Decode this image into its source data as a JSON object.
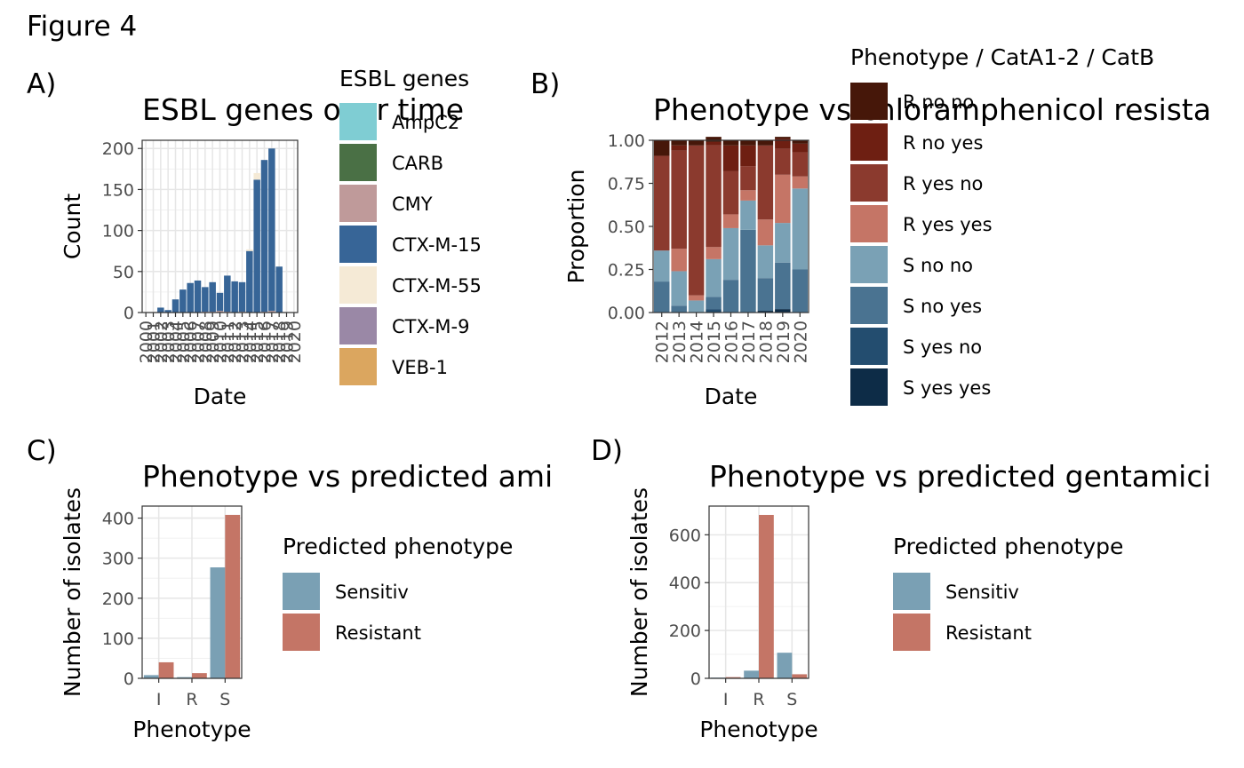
{
  "figure_title": "Figure 4",
  "chart_data": [
    {
      "panel": "A)",
      "type": "bar",
      "stacked": true,
      "title": "ESBL genes over time",
      "xlabel": "Date",
      "ylabel": "Count",
      "ylim": [
        0,
        210
      ],
      "yticks": [
        0,
        50,
        100,
        150,
        200
      ],
      "grid": true,
      "legend_title": "ESBL genes",
      "legend_position": "right",
      "x": [
        2000,
        2001,
        2002,
        2003,
        2004,
        2005,
        2006,
        2007,
        2008,
        2009,
        2010,
        2011,
        2012,
        2013,
        2014,
        2015,
        2016,
        2017,
        2018,
        2019,
        2020
      ],
      "series": [
        {
          "name": "AmpC2",
          "color": "#7fcdd3",
          "values": [
            0,
            0,
            0,
            0,
            0,
            0,
            0,
            0,
            0,
            0,
            0,
            0,
            0,
            0,
            0,
            0,
            0,
            0,
            0,
            0,
            0
          ]
        },
        {
          "name": "CARB",
          "color": "#4a7045",
          "values": [
            0,
            0,
            0,
            0,
            0,
            0,
            0,
            0,
            0,
            0,
            0,
            0,
            0,
            0,
            0,
            0,
            0,
            0,
            0,
            0,
            0
          ]
        },
        {
          "name": "CMY",
          "color": "#bf9a9a",
          "values": [
            0,
            0,
            0,
            0,
            0,
            0,
            0,
            0,
            1,
            1,
            2,
            1,
            0,
            1,
            0,
            0,
            1,
            2,
            0,
            0,
            0
          ]
        },
        {
          "name": "CTX-M-15",
          "color": "#376597",
          "values": [
            0,
            0,
            6,
            3,
            16,
            28,
            36,
            39,
            30,
            36,
            22,
            44,
            38,
            36,
            75,
            162,
            185,
            198,
            56,
            0,
            0
          ]
        },
        {
          "name": "CTX-M-55",
          "color": "#f5ead6",
          "values": [
            0,
            0,
            0,
            0,
            0,
            0,
            0,
            0,
            0,
            0,
            0,
            0,
            0,
            0,
            2,
            8,
            0,
            0,
            0,
            0,
            0
          ]
        },
        {
          "name": "CTX-M-9",
          "color": "#9a88a6",
          "values": [
            0,
            0,
            0,
            0,
            0,
            0,
            0,
            0,
            0,
            0,
            0,
            0,
            0,
            0,
            0,
            0,
            0,
            0,
            0,
            0,
            0
          ]
        },
        {
          "name": "VEB-1",
          "color": "#dba65f",
          "values": [
            0,
            0,
            0,
            0,
            0,
            0,
            0,
            0,
            0,
            0,
            0,
            0,
            0,
            0,
            0,
            0,
            0,
            0,
            0,
            0,
            0
          ]
        }
      ]
    },
    {
      "panel": "B)",
      "type": "bar",
      "stacked": true,
      "title": "Phenotype vs chloramphenicol resista",
      "xlabel": "Date",
      "ylabel": "Proportion",
      "ylim": [
        0,
        1
      ],
      "yticks": [
        "0.00",
        "0.25",
        "0.50",
        "0.75",
        "1.00"
      ],
      "grid": false,
      "legend_title": "Phenotype / CatA1-2 / CatB",
      "legend_position": "right",
      "categories": [
        "2012",
        "2013",
        "2014",
        "2015",
        "2016",
        "2017",
        "2018",
        "2019",
        "2020"
      ],
      "series": [
        {
          "name": "S yes yes",
          "color": "#0d2c47",
          "values": [
            0,
            0,
            0,
            0,
            0,
            0,
            0.01,
            0.02,
            0
          ]
        },
        {
          "name": "S yes no",
          "color": "#234d6f",
          "values": [
            0,
            0,
            0,
            0.02,
            0,
            0,
            0,
            0,
            0
          ]
        },
        {
          "name": "S no yes",
          "color": "#4a7391",
          "values": [
            0.18,
            0.04,
            0,
            0.07,
            0.19,
            0.48,
            0.19,
            0.27,
            0.25
          ]
        },
        {
          "name": "S no no",
          "color": "#7aa1b5",
          "values": [
            0.18,
            0.2,
            0.07,
            0.22,
            0.3,
            0.17,
            0.19,
            0.23,
            0.47
          ]
        },
        {
          "name": "R yes yes",
          "color": "#c57566",
          "values": [
            0,
            0.13,
            0.03,
            0.07,
            0.08,
            0.06,
            0.15,
            0.28,
            0.07
          ]
        },
        {
          "name": "R yes no",
          "color": "#8b3a2e",
          "values": [
            0.55,
            0.57,
            0.87,
            0.59,
            0.25,
            0.14,
            0.43,
            0.15,
            0.14
          ]
        },
        {
          "name": "R no yes",
          "color": "#6e1f12",
          "values": [
            0,
            0.03,
            0,
            0.02,
            0.15,
            0.12,
            0,
            0.06,
            0.05
          ]
        },
        {
          "name": "R no no",
          "color": "#461709",
          "values": [
            0.09,
            0.03,
            0.03,
            0.03,
            0.03,
            0.03,
            0.03,
            0.01,
            0.02
          ]
        }
      ],
      "legend_order": [
        "R no no",
        "R no yes",
        "R yes no",
        "R yes yes",
        "S no no",
        "S no yes",
        "S yes no",
        "S yes yes"
      ]
    },
    {
      "panel": "C)",
      "type": "bar",
      "grouped": true,
      "title": "Phenotype vs predicted ami",
      "xlabel": "Phenotype",
      "ylabel": "Number of isolates",
      "ylim": [
        0,
        430
      ],
      "yticks": [
        0,
        100,
        200,
        300,
        400
      ],
      "grid": true,
      "legend_title": "Predicted phenotype",
      "legend_position": "right",
      "categories": [
        "I",
        "R",
        "S"
      ],
      "series": [
        {
          "name": "Sensitiv",
          "color": "#7aa0b4",
          "values": [
            8,
            3,
            277
          ]
        },
        {
          "name": "Resistant",
          "color": "#c47566",
          "values": [
            40,
            13,
            408
          ]
        }
      ]
    },
    {
      "panel": "D)",
      "type": "bar",
      "grouped": true,
      "title": "Phenotype vs predicted gentamici",
      "xlabel": "Phenotype",
      "ylabel": "Number of isolates",
      "ylim": [
        0,
        720
      ],
      "yticks": [
        0,
        200,
        400,
        600
      ],
      "grid": true,
      "legend_title": "Predicted phenotype",
      "legend_position": "right",
      "categories": [
        "I",
        "R",
        "S"
      ],
      "series": [
        {
          "name": "Sensitiv",
          "color": "#7aa0b4",
          "values": [
            3,
            32,
            107
          ]
        },
        {
          "name": "Resistant",
          "color": "#c47566",
          "values": [
            5,
            683,
            17
          ]
        }
      ]
    }
  ]
}
